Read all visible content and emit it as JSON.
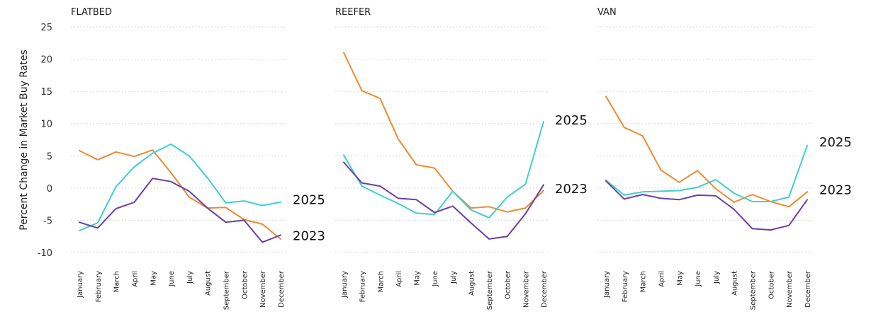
{
  "chart_data": {
    "type": "line",
    "ylabel": "Percent Change in Market Buy Rates",
    "ylim": [
      -10,
      25
    ],
    "yticks": [
      -10,
      -5,
      0,
      5,
      10,
      15,
      20,
      25
    ],
    "grid": true,
    "categories": [
      "January",
      "February",
      "March",
      "April",
      "May",
      "June",
      "July",
      "August",
      "September",
      "October",
      "November",
      "December"
    ],
    "colors": {
      "orange": "#ee8a2e",
      "teal": "#3fcfcf",
      "purple": "#6a3fa8"
    },
    "panels": [
      {
        "title": "FLATBED",
        "series": [
          {
            "color": "orange",
            "values": [
              5.8,
              4.4,
              5.6,
              4.9,
              5.9,
              2.4,
              -1.4,
              -3.1,
              -3.0,
              -4.9,
              -5.6,
              -7.9
            ]
          },
          {
            "color": "teal",
            "values": [
              -6.6,
              -5.4,
              0.2,
              3.3,
              5.4,
              6.8,
              5.0,
              1.6,
              -2.3,
              -2.0,
              -2.7,
              -2.2
            ]
          },
          {
            "color": "purple",
            "values": [
              -5.3,
              -6.2,
              -3.2,
              -2.2,
              1.5,
              1.0,
              -0.5,
              -3.1,
              -5.3,
              -5.0,
              -8.4,
              -7.3
            ]
          }
        ],
        "annotations": [
          {
            "text": "2025",
            "y": -1.8
          },
          {
            "text": "2023",
            "y": -7.4
          }
        ]
      },
      {
        "title": "REEFER",
        "series": [
          {
            "color": "orange",
            "values": [
              21.0,
              15.1,
              13.9,
              7.6,
              3.6,
              3.1,
              -0.5,
              -3.1,
              -2.9,
              -3.7,
              -3.1,
              -0.4
            ]
          },
          {
            "color": "teal",
            "values": [
              5.1,
              0.3,
              -1.1,
              -2.4,
              -3.9,
              -4.1,
              -0.5,
              -3.4,
              -4.6,
              -1.4,
              0.6,
              10.3
            ]
          },
          {
            "color": "purple",
            "values": [
              4.0,
              0.8,
              0.3,
              -1.6,
              -1.8,
              -3.8,
              -2.8,
              -5.4,
              -7.9,
              -7.5,
              -4.0,
              0.5
            ]
          }
        ],
        "annotations": [
          {
            "text": "2025",
            "y": 10.5
          },
          {
            "text": "2023",
            "y": -0.1
          }
        ]
      },
      {
        "title": "VAN",
        "series": [
          {
            "color": "orange",
            "values": [
              14.2,
              9.4,
              8.1,
              2.8,
              0.9,
              2.7,
              -0.1,
              -2.2,
              -1.0,
              -2.1,
              -2.9,
              -0.6
            ]
          },
          {
            "color": "teal",
            "values": [
              1.2,
              -1.1,
              -0.6,
              -0.5,
              -0.4,
              0.1,
              1.3,
              -0.8,
              -2.1,
              -2.1,
              -1.4,
              6.6
            ]
          },
          {
            "color": "purple",
            "values": [
              1.1,
              -1.7,
              -1.0,
              -1.6,
              -1.8,
              -1.1,
              -1.2,
              -3.3,
              -6.3,
              -6.5,
              -5.8,
              -1.8
            ]
          }
        ],
        "annotations": [
          {
            "text": "2025",
            "y": 7.1
          },
          {
            "text": "2023",
            "y": -0.3
          }
        ]
      }
    ]
  }
}
